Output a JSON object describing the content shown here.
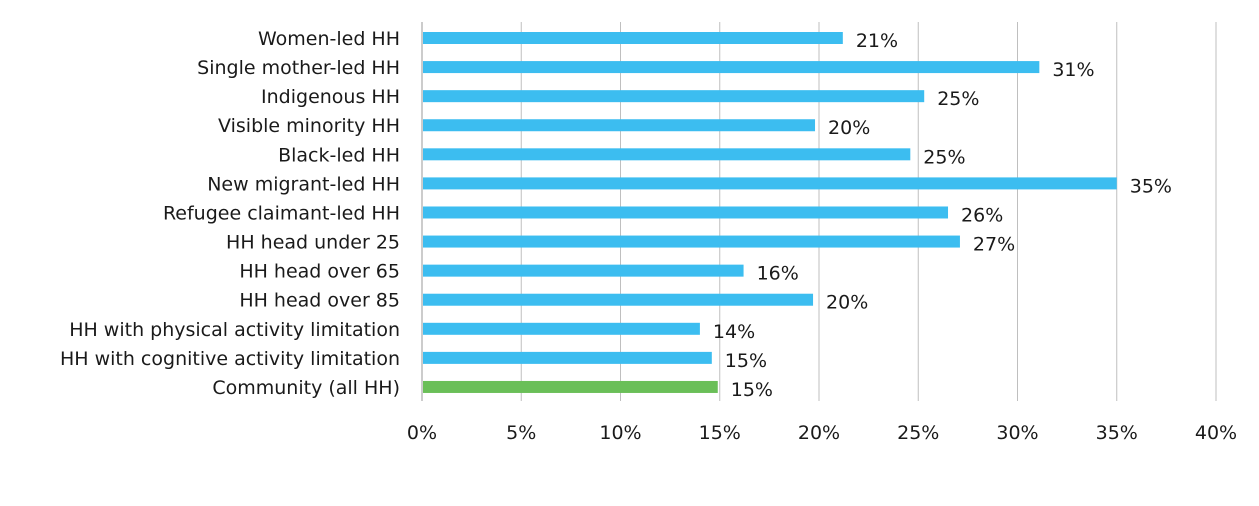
{
  "chart_data": {
    "type": "bar",
    "orientation": "horizontal",
    "title": "",
    "xlabel": "",
    "ylabel": "",
    "categories": [
      "Women-led HH",
      "Single mother-led HH",
      "Indigenous HH",
      "Visible minority HH",
      "Black-led HH",
      "New migrant-led HH",
      "Refugee claimant-led HH",
      "HH head under 25",
      "HH head over 65",
      "HH head over 85",
      "HH with physical activity limitation",
      "HH with cognitive activity limitation",
      "Community (all HH)"
    ],
    "values": [
      21.2,
      31.1,
      25.3,
      19.8,
      24.6,
      35.0,
      26.5,
      27.1,
      16.2,
      19.7,
      14.0,
      14.6,
      14.9
    ],
    "value_labels": [
      "21%",
      "31%",
      "25%",
      "20%",
      "25%",
      "35%",
      "26%",
      "27%",
      "16%",
      "20%",
      "14%",
      "15%",
      "15%"
    ],
    "xlim": [
      0,
      40
    ],
    "xticks": [
      0,
      5,
      10,
      15,
      20,
      25,
      30,
      35,
      40
    ],
    "xtick_labels": [
      "0%",
      "5%",
      "10%",
      "15%",
      "20%",
      "25%",
      "30%",
      "35%",
      "40%"
    ],
    "grid": true,
    "legend": "none",
    "colors": {
      "bar": "#3cbdf0",
      "highlight_bar": "#6abf58",
      "highlight_category": "Community (all HH)"
    }
  }
}
